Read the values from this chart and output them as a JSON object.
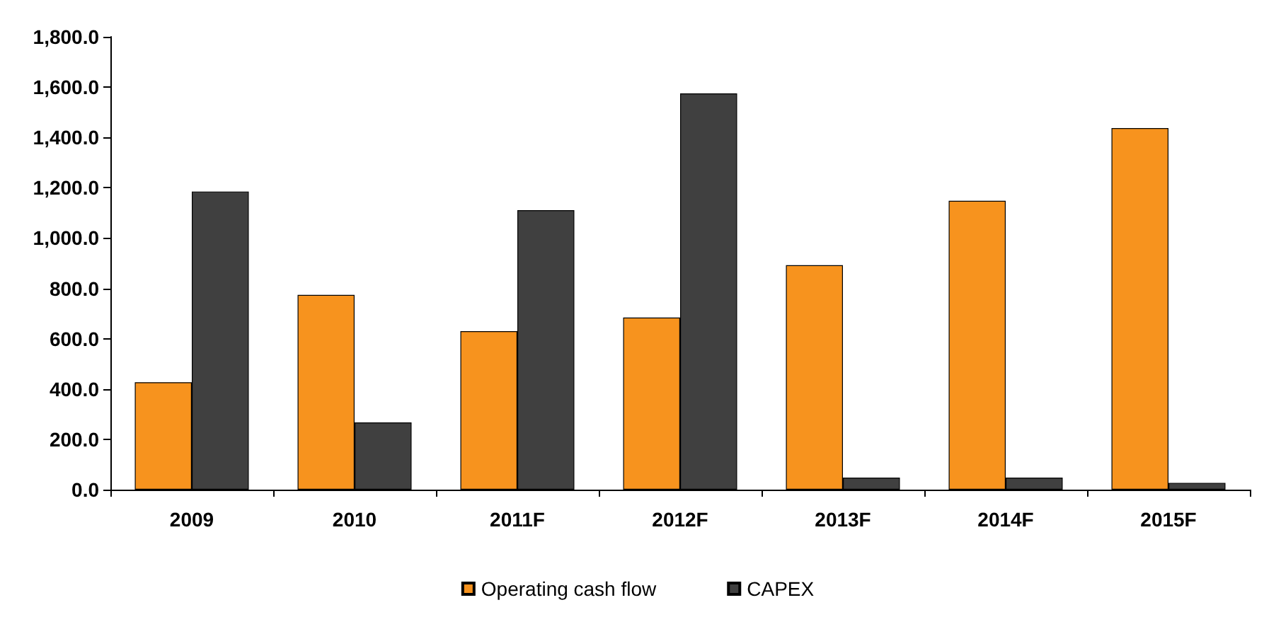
{
  "chart_data": {
    "type": "bar",
    "categories": [
      "2009",
      "2010",
      "2011F",
      "2012F",
      "2013F",
      "2014F",
      "2015F"
    ],
    "series": [
      {
        "name": "Operating cash flow",
        "color": "#f7931e",
        "values": [
          427,
          774,
          630,
          684,
          892,
          1148,
          1437
        ]
      },
      {
        "name": "CAPEX",
        "color": "#404040",
        "values": [
          1185,
          267,
          1111,
          1575,
          48,
          48,
          27
        ]
      }
    ],
    "ylim": [
      0,
      1800
    ],
    "yticks": [
      {
        "value": 0,
        "label": "0.0"
      },
      {
        "value": 200,
        "label": "200.0"
      },
      {
        "value": 400,
        "label": "400.0"
      },
      {
        "value": 600,
        "label": "600.0"
      },
      {
        "value": 800,
        "label": "800.0"
      },
      {
        "value": 1000,
        "label": "1,000.0"
      },
      {
        "value": 1200,
        "label": "1,200.0"
      },
      {
        "value": 1400,
        "label": "1,400.0"
      },
      {
        "value": 1600,
        "label": "1,600.0"
      },
      {
        "value": 1800,
        "label": "1,800.0"
      }
    ],
    "grid": false,
    "legend": "bottom"
  }
}
